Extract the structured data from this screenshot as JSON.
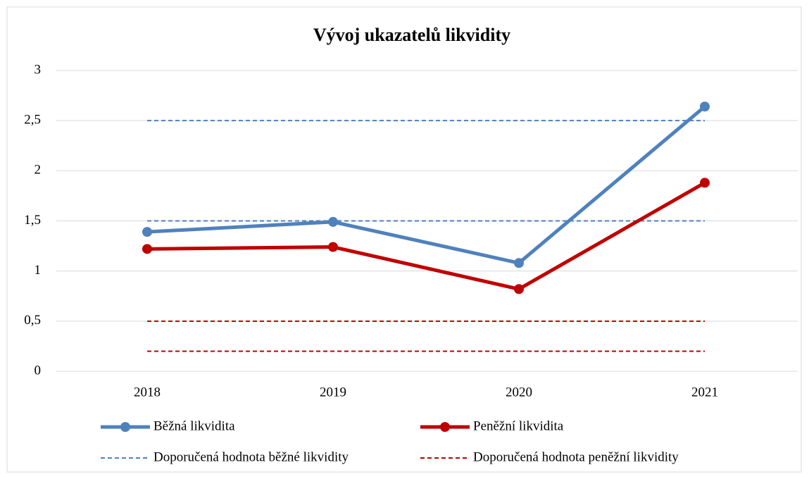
{
  "chart_data": {
    "type": "line",
    "title": "Vývoj ukazatelů likvidity",
    "categories": [
      "2018",
      "2019",
      "2020",
      "2021"
    ],
    "series": [
      {
        "name": "Běžná likvidita",
        "color": "#4f81bd",
        "values": [
          1.39,
          1.49,
          1.08,
          2.64
        ]
      },
      {
        "name": "Peněžní likvidita",
        "color": "#c00000",
        "values": [
          1.22,
          1.24,
          0.82,
          1.88
        ]
      },
      {
        "name": "Doporučená hodnota běžné likvidity",
        "color": "#4f81bd",
        "dashed": true,
        "values": [
          2.5,
          2.5,
          2.5,
          2.5
        ],
        "values_low": [
          1.5,
          1.5,
          1.5,
          1.5
        ]
      },
      {
        "name": "Doporučená hodnota peněžní likvidity",
        "color": "#c00000",
        "dashed": true,
        "values": [
          0.5,
          0.5,
          0.5,
          0.5
        ],
        "values_low": [
          0.2,
          0.2,
          0.2,
          0.2
        ]
      }
    ],
    "ylim": [
      0,
      3
    ],
    "yticks": [
      0,
      {
        "value": 0.5,
        "label": "0,5"
      },
      1,
      {
        "value": 1.5,
        "label": "1,5"
      },
      2,
      {
        "value": 2.5,
        "label": "2,5"
      },
      3
    ],
    "grid": true,
    "legend": "bottom"
  }
}
